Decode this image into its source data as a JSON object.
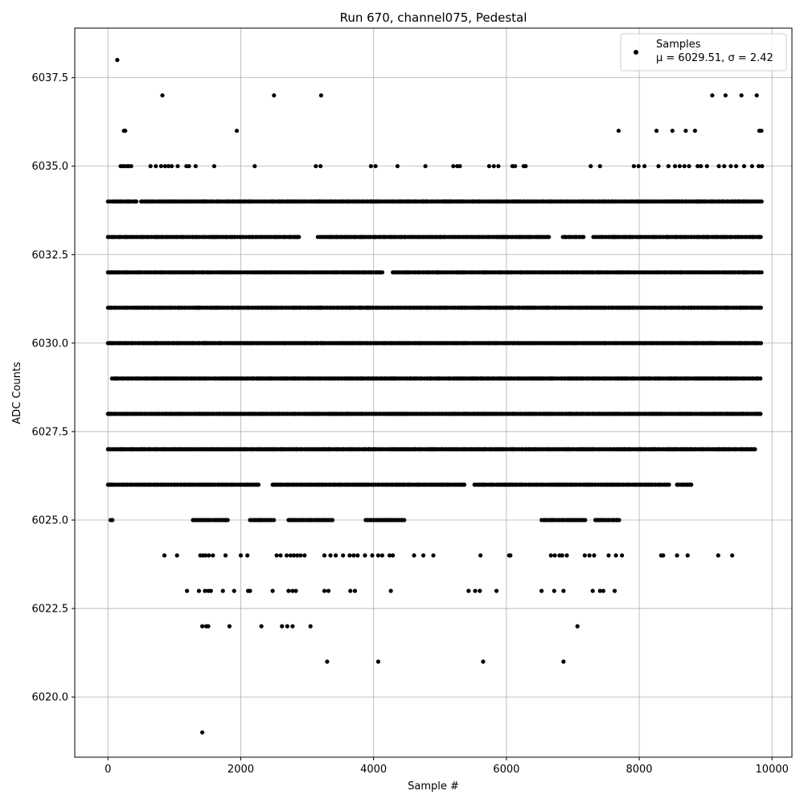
{
  "chart_data": {
    "type": "scatter",
    "title": "Run 670, channel075, Pedestal",
    "xlabel": "Sample #",
    "ylabel": "ADC Counts",
    "xlim": [
      -500,
      10300
    ],
    "ylim": [
      6018.3,
      6038.9
    ],
    "xticks": [
      0,
      2000,
      4000,
      6000,
      8000,
      10000
    ],
    "xtick_labels": [
      "0",
      "2000",
      "4000",
      "6000",
      "8000",
      "10000"
    ],
    "yticks": [
      6020.0,
      6022.5,
      6025.0,
      6027.5,
      6030.0,
      6032.5,
      6035.0,
      6037.5
    ],
    "ytick_labels": [
      "6020.0",
      "6022.5",
      "6025.0",
      "6027.5",
      "6030.0",
      "6032.5",
      "6035.0",
      "6037.5"
    ],
    "grid": true,
    "legend_position": "top-right",
    "series": [
      {
        "name": "Samples",
        "color": "#000000",
        "annotation": "μ = 6029.51, σ = 2.42",
        "n_samples": 9850,
        "level_coverage": [
          {
            "y": 6027,
            "ranges": [
              [
                0,
                9750
              ]
            ]
          },
          {
            "y": 6028,
            "ranges": [
              [
                0,
                9850
              ]
            ]
          },
          {
            "y": 6029,
            "ranges": [
              [
                60,
                9850
              ]
            ]
          },
          {
            "y": 6030,
            "ranges": [
              [
                0,
                9850
              ]
            ]
          },
          {
            "y": 6031,
            "ranges": [
              [
                0,
                9850
              ]
            ]
          },
          {
            "y": 6032,
            "ranges": [
              [
                0,
                4150
              ],
              [
                4290,
                9850
              ]
            ]
          },
          {
            "y": 6033,
            "ranges": [
              [
                0,
                2880
              ],
              [
                3160,
                6650
              ],
              [
                6850,
                7180
              ],
              [
                7310,
                9850
              ]
            ]
          },
          {
            "y": 6034,
            "ranges": [
              [
                0,
                430
              ],
              [
                500,
                9850
              ]
            ]
          },
          {
            "y": 6026,
            "ranges": [
              [
                0,
                2280
              ],
              [
                2480,
                5400
              ],
              [
                5520,
                8450
              ],
              [
                8570,
                8790
              ]
            ]
          },
          {
            "y": 6025,
            "ranges": [
              [
                40,
                80
              ],
              [
                1280,
                1810
              ],
              [
                2140,
                2500
              ],
              [
                2720,
                3400
              ],
              [
                3880,
                4480
              ],
              [
                6530,
                7220
              ],
              [
                7340,
                7720
              ]
            ]
          }
        ],
        "sparse_points": [
          [
            140,
            6038
          ],
          [
            820,
            6037
          ],
          [
            2500,
            6037
          ],
          [
            3210,
            6037
          ],
          [
            9100,
            6037
          ],
          [
            9300,
            6037
          ],
          [
            9540,
            6037
          ],
          [
            9770,
            6037
          ],
          [
            240,
            6036
          ],
          [
            260,
            6036
          ],
          [
            1940,
            6036
          ],
          [
            7690,
            6036
          ],
          [
            8260,
            6036
          ],
          [
            8500,
            6036
          ],
          [
            8700,
            6036
          ],
          [
            8840,
            6036
          ],
          [
            9810,
            6036
          ],
          [
            9840,
            6036
          ],
          [
            190,
            6035
          ],
          [
            220,
            6035
          ],
          [
            250,
            6035
          ],
          [
            290,
            6035
          ],
          [
            310,
            6035
          ],
          [
            350,
            6035
          ],
          [
            640,
            6035
          ],
          [
            720,
            6035
          ],
          [
            800,
            6035
          ],
          [
            860,
            6035
          ],
          [
            910,
            6035
          ],
          [
            960,
            6035
          ],
          [
            1050,
            6035
          ],
          [
            1180,
            6035
          ],
          [
            1220,
            6035
          ],
          [
            1320,
            6035
          ],
          [
            1600,
            6035
          ],
          [
            2210,
            6035
          ],
          [
            3130,
            6035
          ],
          [
            3200,
            6035
          ],
          [
            3960,
            6035
          ],
          [
            4030,
            6035
          ],
          [
            4360,
            6035
          ],
          [
            4780,
            6035
          ],
          [
            5200,
            6035
          ],
          [
            5260,
            6035
          ],
          [
            5300,
            6035
          ],
          [
            5740,
            6035
          ],
          [
            5810,
            6035
          ],
          [
            5880,
            6035
          ],
          [
            6090,
            6035
          ],
          [
            6130,
            6035
          ],
          [
            6260,
            6035
          ],
          [
            6290,
            6035
          ],
          [
            7270,
            6035
          ],
          [
            7410,
            6035
          ],
          [
            7920,
            6035
          ],
          [
            7990,
            6035
          ],
          [
            8080,
            6035
          ],
          [
            8290,
            6035
          ],
          [
            8440,
            6035
          ],
          [
            8540,
            6035
          ],
          [
            8610,
            6035
          ],
          [
            8680,
            6035
          ],
          [
            8750,
            6035
          ],
          [
            8880,
            6035
          ],
          [
            8930,
            6035
          ],
          [
            9020,
            6035
          ],
          [
            9200,
            6035
          ],
          [
            9280,
            6035
          ],
          [
            9380,
            6035
          ],
          [
            9460,
            6035
          ],
          [
            9580,
            6035
          ],
          [
            9700,
            6035
          ],
          [
            9800,
            6035
          ],
          [
            9850,
            6035
          ],
          [
            850,
            6024
          ],
          [
            1040,
            6024
          ],
          [
            1390,
            6024
          ],
          [
            1430,
            6024
          ],
          [
            1470,
            6024
          ],
          [
            1520,
            6024
          ],
          [
            1580,
            6024
          ],
          [
            1770,
            6024
          ],
          [
            2000,
            6024
          ],
          [
            2100,
            6024
          ],
          [
            2540,
            6024
          ],
          [
            2600,
            6024
          ],
          [
            2690,
            6024
          ],
          [
            2750,
            6024
          ],
          [
            2800,
            6024
          ],
          [
            2850,
            6024
          ],
          [
            2900,
            6024
          ],
          [
            2960,
            6024
          ],
          [
            3260,
            6024
          ],
          [
            3350,
            6024
          ],
          [
            3430,
            6024
          ],
          [
            3540,
            6024
          ],
          [
            3640,
            6024
          ],
          [
            3700,
            6024
          ],
          [
            3760,
            6024
          ],
          [
            3870,
            6024
          ],
          [
            3980,
            6024
          ],
          [
            4070,
            6024
          ],
          [
            4130,
            6024
          ],
          [
            4240,
            6024
          ],
          [
            4290,
            6024
          ],
          [
            4610,
            6024
          ],
          [
            4750,
            6024
          ],
          [
            4900,
            6024
          ],
          [
            5610,
            6024
          ],
          [
            6040,
            6024
          ],
          [
            6060,
            6024
          ],
          [
            6670,
            6024
          ],
          [
            6730,
            6024
          ],
          [
            6800,
            6024
          ],
          [
            6840,
            6024
          ],
          [
            6910,
            6024
          ],
          [
            7180,
            6024
          ],
          [
            7250,
            6024
          ],
          [
            7320,
            6024
          ],
          [
            7540,
            6024
          ],
          [
            7650,
            6024
          ],
          [
            7740,
            6024
          ],
          [
            8330,
            6024
          ],
          [
            8360,
            6024
          ],
          [
            8570,
            6024
          ],
          [
            8730,
            6024
          ],
          [
            9190,
            6024
          ],
          [
            9400,
            6024
          ],
          [
            1190,
            6023
          ],
          [
            1370,
            6023
          ],
          [
            1460,
            6023
          ],
          [
            1510,
            6023
          ],
          [
            1550,
            6023
          ],
          [
            1730,
            6023
          ],
          [
            1900,
            6023
          ],
          [
            2110,
            6023
          ],
          [
            2140,
            6023
          ],
          [
            2480,
            6023
          ],
          [
            2720,
            6023
          ],
          [
            2780,
            6023
          ],
          [
            2830,
            6023
          ],
          [
            3260,
            6023
          ],
          [
            3320,
            6023
          ],
          [
            3650,
            6023
          ],
          [
            3720,
            6023
          ],
          [
            4260,
            6023
          ],
          [
            5430,
            6023
          ],
          [
            5530,
            6023
          ],
          [
            5600,
            6023
          ],
          [
            5850,
            6023
          ],
          [
            6530,
            6023
          ],
          [
            6720,
            6023
          ],
          [
            6860,
            6023
          ],
          [
            7300,
            6023
          ],
          [
            7410,
            6023
          ],
          [
            7460,
            6023
          ],
          [
            7630,
            6023
          ],
          [
            1420,
            6022
          ],
          [
            1480,
            6022
          ],
          [
            1510,
            6022
          ],
          [
            1830,
            6022
          ],
          [
            2310,
            6022
          ],
          [
            2620,
            6022
          ],
          [
            2700,
            6022
          ],
          [
            2780,
            6022
          ],
          [
            3050,
            6022
          ],
          [
            7070,
            6022
          ],
          [
            3300,
            6021
          ],
          [
            4070,
            6021
          ],
          [
            5650,
            6021
          ],
          [
            6860,
            6021
          ],
          [
            1420,
            6019
          ]
        ]
      }
    ]
  }
}
